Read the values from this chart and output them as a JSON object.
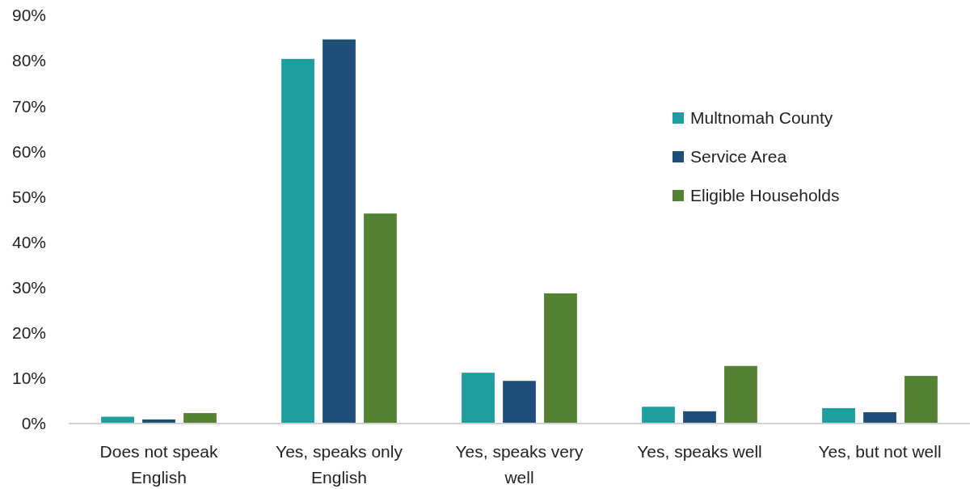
{
  "chart_data": {
    "type": "bar",
    "categories": [
      "Does not speak English",
      "Yes, speaks only English",
      "Yes, speaks very well",
      "Yes, speaks well",
      "Yes, but not well"
    ],
    "series": [
      {
        "name": "Multnomah County",
        "color": "#1f9e9f",
        "values": [
          1.5,
          80.4,
          11.2,
          3.7,
          3.4
        ]
      },
      {
        "name": "Service Area",
        "color": "#1f4e79",
        "values": [
          0.9,
          84.7,
          9.4,
          2.7,
          2.5
        ]
      },
      {
        "name": "Eligible Households",
        "color": "#548235",
        "values": [
          2.3,
          46.3,
          28.7,
          12.7,
          10.5
        ]
      }
    ],
    "ylim": [
      0,
      90
    ],
    "yticks": [
      {
        "value": 0,
        "label": "0%"
      },
      {
        "value": 10,
        "label": "10%"
      },
      {
        "value": 20,
        "label": "20%"
      },
      {
        "value": 30,
        "label": "30%"
      },
      {
        "value": 40,
        "label": "40%"
      },
      {
        "value": 50,
        "label": "50%"
      },
      {
        "value": 60,
        "label": "60%"
      },
      {
        "value": 70,
        "label": "70%"
      },
      {
        "value": 80,
        "label": "80%"
      },
      {
        "value": 90,
        "label": "90%"
      }
    ],
    "grid": false,
    "legend": "right"
  }
}
